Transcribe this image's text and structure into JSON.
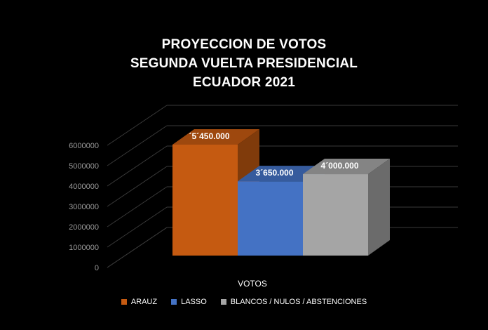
{
  "chart_data": {
    "type": "bar",
    "title": [
      "PROYECCION DE VOTOS",
      "SEGUNDA VUELTA PRESIDENCIAL",
      "ECUADOR 2021"
    ],
    "categories": [
      "VOTOS"
    ],
    "xlabel": "VOTOS",
    "ylabel": "",
    "ylim": [
      0,
      6000000
    ],
    "y_ticks": [
      "0",
      "1000000",
      "2000000",
      "3000000",
      "4000000",
      "5000000",
      "6000000"
    ],
    "grid": true,
    "legend_position": "bottom",
    "series": [
      {
        "name": "ARAUZ",
        "values": [
          5450000
        ],
        "data_label": "´5´450.000",
        "color": "#c55a11"
      },
      {
        "name": "LASSO",
        "values": [
          3650000
        ],
        "data_label": "3´650.000",
        "color": "#4472c4"
      },
      {
        "name": "BLANCOS / NULOS / ABSTENCIONES",
        "values": [
          4000000
        ],
        "data_label": "4´000.000",
        "color": "#a5a5a5"
      }
    ]
  }
}
